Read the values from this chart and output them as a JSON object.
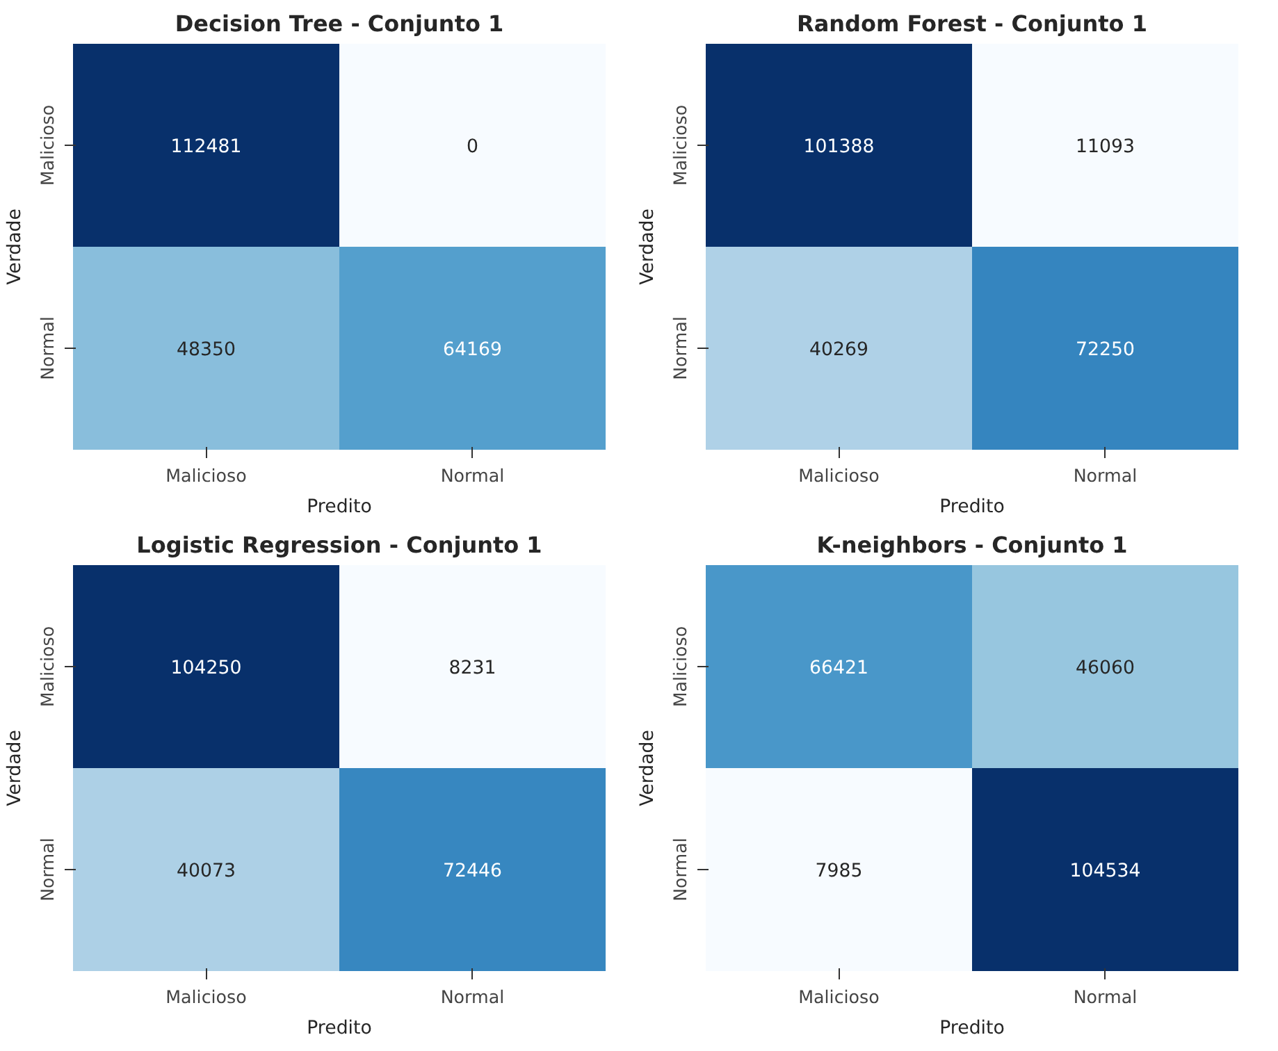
{
  "chart_data": [
    {
      "type": "heatmap",
      "data_labels": true,
      "title": "Decision Tree - Conjunto 1",
      "xlabel": "Predito",
      "ylabel": "Verdade",
      "categories": [
        "Malicioso",
        "Normal"
      ],
      "y_categories": [
        "Malicioso",
        "Normal"
      ],
      "cells": [
        [
          112481,
          0
        ],
        [
          48350,
          64169
        ]
      ]
    },
    {
      "type": "heatmap",
      "data_labels": true,
      "title": "Random Forest - Conjunto 1",
      "xlabel": "Predito",
      "ylabel": "Verdade",
      "categories": [
        "Malicioso",
        "Normal"
      ],
      "y_categories": [
        "Malicioso",
        "Normal"
      ],
      "cells": [
        [
          101388,
          11093
        ],
        [
          40269,
          72250
        ]
      ]
    },
    {
      "type": "heatmap",
      "data_labels": true,
      "title": "Logistic Regression - Conjunto 1",
      "xlabel": "Predito",
      "ylabel": "Verdade",
      "categories": [
        "Malicioso",
        "Normal"
      ],
      "y_categories": [
        "Malicioso",
        "Normal"
      ],
      "cells": [
        [
          104250,
          8231
        ],
        [
          40073,
          72446
        ]
      ]
    },
    {
      "type": "heatmap",
      "data_labels": true,
      "title": "K-neighbors - Conjunto 1",
      "xlabel": "Predito",
      "ylabel": "Verdade",
      "categories": [
        "Malicioso",
        "Normal"
      ],
      "y_categories": [
        "Malicioso",
        "Normal"
      ],
      "cells": [
        [
          66421,
          46060
        ],
        [
          7985,
          104534
        ]
      ]
    }
  ]
}
